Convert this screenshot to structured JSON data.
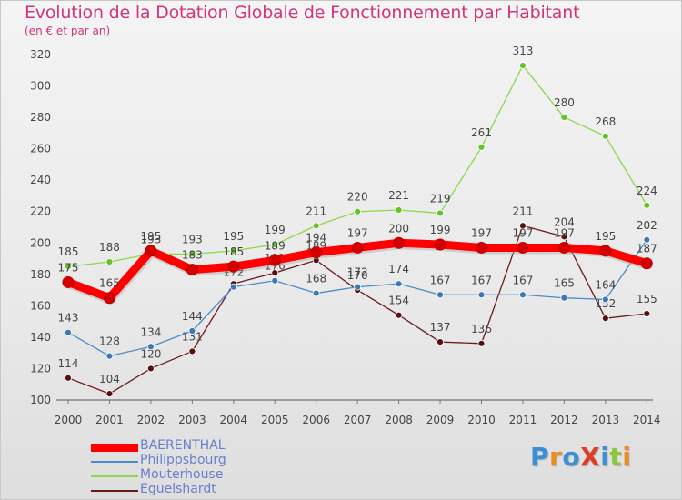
{
  "title": "Evolution de la Dotation Globale de Fonctionnement par Habitant",
  "subtitle": "(en € et par an)",
  "logo": {
    "text": "Proxiti",
    "letters": [
      {
        "ch": "P",
        "color": "#3a8fd6"
      },
      {
        "ch": "r",
        "color": "#f08a1c"
      },
      {
        "ch": "o",
        "color": "#3a8fd6"
      },
      {
        "ch": "X",
        "color": "#e23b2a"
      },
      {
        "ch": "i",
        "color": "#3a8fd6"
      },
      {
        "ch": "t",
        "color": "#8cc63e"
      },
      {
        "ch": "i",
        "color": "#f08a1c"
      }
    ]
  },
  "chart_data": {
    "type": "line",
    "title": "Evolution de la Dotation Globale de Fonctionnement par Habitant",
    "subtitle": "(en € et par an)",
    "x": [
      "2000",
      "2001",
      "2002",
      "2003",
      "2004",
      "2005",
      "2006",
      "2007",
      "2008",
      "2009",
      "2010",
      "2011",
      "2012",
      "2013",
      "2014"
    ],
    "ylim": [
      100,
      320
    ],
    "yticks": [
      100,
      120,
      140,
      160,
      180,
      200,
      220,
      240,
      260,
      280,
      300,
      320
    ],
    "grid": false,
    "legend_position": "bottom-left",
    "series": [
      {
        "name": "Eguelshardt",
        "color": "#6b1a1a",
        "dot": "#5a0f0f",
        "values": [
          114,
          104,
          120,
          131,
          174,
          181,
          189,
          170,
          154,
          137,
          136,
          211,
          204,
          152,
          155
        ],
        "labels": [
          "114",
          "104",
          "120",
          "131",
          "174",
          "181",
          "189",
          "170",
          "154",
          "137",
          "136",
          "211",
          "204",
          "152",
          "155"
        ]
      },
      {
        "name": "Philippsbourg",
        "color": "#4a8cc8",
        "dot": "#3a78b8",
        "values": [
          143,
          128,
          134,
          144,
          172,
          176,
          168,
          172,
          174,
          167,
          167,
          167,
          165,
          164,
          202
        ],
        "labels": [
          "143",
          "128",
          "134",
          "144",
          "172",
          "176",
          "168",
          "172",
          "174",
          "167",
          "167",
          "167",
          "165",
          "164",
          "202"
        ]
      },
      {
        "name": "Mouterhouse",
        "color": "#8bd84a",
        "dot": "#66c22a",
        "values": [
          185,
          188,
          193,
          193,
          195,
          199,
          211,
          220,
          221,
          219,
          261,
          313,
          280,
          268,
          224
        ],
        "labels": [
          "185",
          "188",
          "193",
          "193",
          "195",
          "199",
          "211",
          "220",
          "221",
          "219",
          "261",
          "313",
          "280",
          "268",
          "224"
        ]
      },
      {
        "name": "BAERENTHAL",
        "color": "#ff0000",
        "dot": "#d40000",
        "values": [
          175,
          165,
          195,
          183,
          185,
          189,
          194,
          197,
          200,
          199,
          197,
          197,
          197,
          195,
          187
        ],
        "labels": [
          "175",
          "165",
          "195",
          "183",
          "185",
          "189",
          "194",
          "197",
          "200",
          "199",
          "197",
          "197",
          "197",
          "195",
          "187"
        ]
      }
    ]
  },
  "legend": [
    {
      "label": "BAERENTHAL",
      "color": "#ff0000"
    },
    {
      "label": "Philippsbourg",
      "color": "#4a8cc8"
    },
    {
      "label": "Mouterhouse",
      "color": "#8bd84a"
    },
    {
      "label": "Eguelshardt",
      "color": "#6b1a1a"
    }
  ]
}
